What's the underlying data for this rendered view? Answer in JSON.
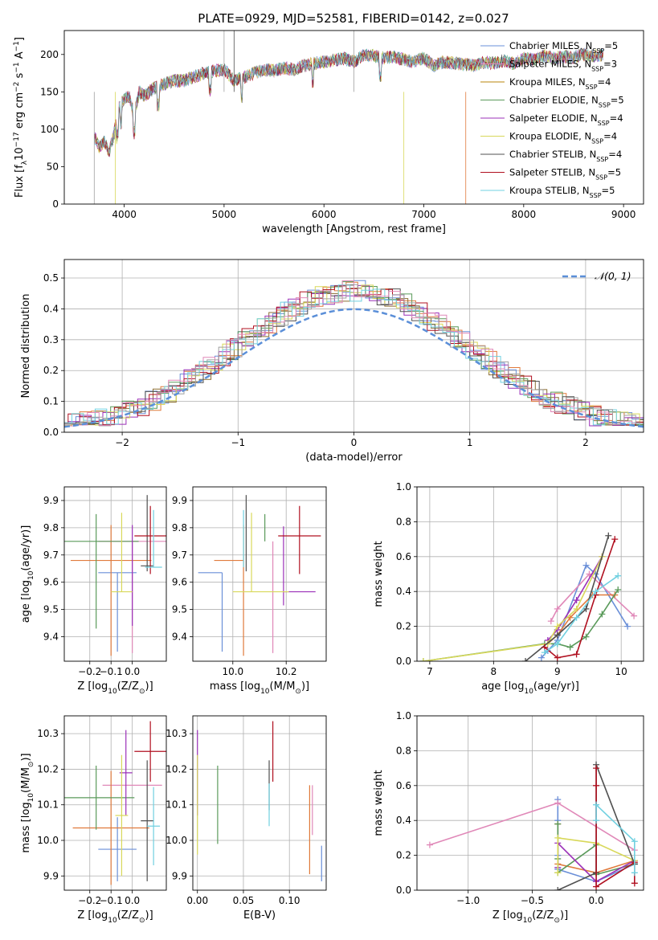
{
  "figure": {
    "title": "PLATE=0929, MJD=52581, FIBERID=0142, z=0.027"
  },
  "colors": [
    "#6a8fd8",
    "#e07a3c",
    "#8c6d31",
    "#5a9a5a",
    "#9b30b8",
    "#d8d85a",
    "#505050",
    "#b01020",
    "#70d0e0",
    "#e088b8",
    "#a0a0a0"
  ],
  "models": [
    {
      "label": "Chabrier MILES, N",
      "sub": "SSP",
      "suffix": "=5",
      "color": "#6a8fd8"
    },
    {
      "label": "Salpeter MILES, N",
      "sub": "SSP",
      "suffix": "=3",
      "color": "#e088b8"
    },
    {
      "label": "Kroupa MILES, N",
      "sub": "SSP",
      "suffix": "=4",
      "color": "#b8860b"
    },
    {
      "label": "Chabrier ELODIE, N",
      "sub": "SSP",
      "suffix": "=5",
      "color": "#5a9a5a"
    },
    {
      "label": "Salpeter ELODIE, N",
      "sub": "SSP",
      "suffix": "=4",
      "color": "#9b30b8"
    },
    {
      "label": "Kroupa ELODIE, N",
      "sub": "SSP",
      "suffix": "=4",
      "color": "#d8d85a"
    },
    {
      "label": "Chabrier STELIB, N",
      "sub": "SSP",
      "suffix": "=4",
      "color": "#505050"
    },
    {
      "label": "Salpeter STELIB, N",
      "sub": "SSP",
      "suffix": "=5",
      "color": "#b01020"
    },
    {
      "label": "Kroupa STELIB, N",
      "sub": "SSP",
      "suffix": "=5",
      "color": "#70d0e0"
    }
  ],
  "chart_data": [
    {
      "id": "spectrum",
      "type": "line",
      "xlabel": "wavelength [Angstrom, rest frame]",
      "ylabel_parts": [
        "Flux [f",
        "λ",
        "10",
        "−17",
        " erg cm",
        "−2",
        " s",
        "−1",
        " A",
        "−1",
        "]"
      ],
      "xlim": [
        3400,
        9200
      ],
      "ylim": [
        0,
        232
      ],
      "xticks": [
        4000,
        5000,
        6000,
        7000,
        8000,
        9000
      ],
      "yticks": [
        0,
        50,
        100,
        150,
        200
      ],
      "grid": false,
      "legend": "top-right",
      "series": [
        {
          "x": [
            3700,
            3750,
            3800,
            3850,
            3900,
            3950,
            4000,
            4050,
            4100,
            4150,
            4200,
            4300,
            4400,
            4500,
            4600,
            4700,
            4800,
            4900,
            5000,
            5100,
            5200,
            5300,
            5400,
            5500,
            5600,
            5700,
            5800,
            5900,
            6000,
            6100,
            6200,
            6300,
            6400,
            6500,
            6600,
            6700,
            6800,
            6900,
            7000,
            7100,
            7200,
            7300,
            7400,
            7500,
            7600,
            7700,
            7800,
            7900,
            8000,
            8100,
            8200,
            8300,
            8400,
            8500,
            8600,
            8700,
            8800
          ],
          "y": [
            90,
            75,
            85,
            70,
            95,
            130,
            140,
            145,
            120,
            150,
            145,
            155,
            160,
            165,
            165,
            170,
            175,
            178,
            180,
            165,
            170,
            175,
            180,
            178,
            182,
            180,
            185,
            188,
            190,
            192,
            195,
            190,
            200,
            198,
            195,
            197,
            193,
            190,
            195,
            185,
            190,
            188,
            187,
            185,
            190,
            188,
            192,
            188,
            195,
            193,
            198,
            195,
            197,
            196,
            200,
            198,
            200
          ]
        }
      ]
    },
    {
      "id": "residuals",
      "type": "line",
      "xlabel": "(data-model)/error",
      "ylabel": "Normed distribution",
      "xlim": [
        -2.5,
        2.5
      ],
      "ylim": [
        0,
        0.56
      ],
      "xticks": [
        -2,
        -1,
        0,
        1,
        2
      ],
      "yticks": [
        0.0,
        0.1,
        0.2,
        0.3,
        0.4,
        0.5
      ],
      "grid": true,
      "legend": "top-right",
      "reference": {
        "name": "𝒩(0, 1)",
        "mean": 0,
        "sigma": 1
      }
    },
    {
      "id": "age-vs-Z",
      "type": "scatter",
      "xlabel_parts": [
        "Z [log",
        "10",
        "(Z/Z",
        "⊙",
        ")]"
      ],
      "ylabel_parts": [
        "age  [log",
        "10",
        "(age/yr)]"
      ],
      "xlim": [
        -0.32,
        0.16
      ],
      "ylim": [
        9.31,
        9.95
      ],
      "xticks": [
        -0.2,
        -0.1,
        0.0
      ],
      "yticks": [
        9.4,
        9.5,
        9.6,
        9.7,
        9.8,
        9.9
      ],
      "grid": true,
      "points": [
        {
          "x": -0.07,
          "xerr": 0.09,
          "y": 9.635,
          "yerr_lo": 0.29,
          "yerr_hi": 0.0,
          "color": "#6a8fd8"
        },
        {
          "x": 0.0,
          "xerr": 0.16,
          "y": 9.75,
          "yerr_lo": 0.41,
          "yerr_hi": 0.0,
          "color": "#e088b8"
        },
        {
          "x": -0.1,
          "xerr": 0.19,
          "y": 9.68,
          "yerr_lo": 0.35,
          "yerr_hi": 0.13,
          "color": "#e07a3c"
        },
        {
          "x": -0.17,
          "xerr": 0.2,
          "y": 9.75,
          "yerr_lo": 0.32,
          "yerr_hi": 0.1,
          "color": "#5a9a5a"
        },
        {
          "x": 0.0,
          "xerr": 0.0,
          "y": 9.68,
          "yerr_lo": 0.24,
          "yerr_hi": 0.13,
          "color": "#9b30b8"
        },
        {
          "x": -0.05,
          "xerr": 0.05,
          "y": 9.565,
          "yerr_lo": 0.0,
          "yerr_hi": 0.29,
          "color": "#d8d85a"
        },
        {
          "x": 0.07,
          "xerr": 0.03,
          "y": 9.66,
          "yerr_lo": 0.02,
          "yerr_hi": 0.26,
          "color": "#505050"
        },
        {
          "x": 0.085,
          "xerr": 0.075,
          "y": 9.77,
          "yerr_lo": 0.14,
          "yerr_hi": 0.11,
          "color": "#b01020"
        },
        {
          "x": 0.1,
          "xerr": 0.04,
          "y": 9.655,
          "yerr_lo": 0.0,
          "yerr_hi": 0.21,
          "color": "#70d0e0"
        }
      ]
    },
    {
      "id": "age-vs-mass",
      "type": "scatter",
      "xlabel_parts": [
        "mass [log",
        "10",
        "(M/M",
        "⊙",
        ")]"
      ],
      "xlim": [
        9.85,
        10.35
      ],
      "ylim": [
        9.31,
        9.95
      ],
      "xticks": [
        10.0,
        10.2
      ],
      "yticks": [
        9.4,
        9.5,
        9.6,
        9.7,
        9.8,
        9.9
      ],
      "grid": true,
      "points": [
        {
          "x": 9.96,
          "xerr_lo": 0.09,
          "xerr_hi": 0.0,
          "y": 9.635,
          "yerr_lo": 0.29,
          "yerr_hi": 0.0,
          "color": "#6a8fd8"
        },
        {
          "x": 10.15,
          "xerr_lo": 0.0,
          "xerr_hi": 0.0,
          "y": 9.75,
          "yerr_lo": 0.41,
          "yerr_hi": 0.0,
          "color": "#e088b8"
        },
        {
          "x": 10.04,
          "xerr_lo": 0.11,
          "xerr_hi": 0.0,
          "y": 9.68,
          "yerr_lo": 0.35,
          "yerr_hi": 0.13,
          "color": "#e07a3c"
        },
        {
          "x": 10.12,
          "xerr_lo": 0.0,
          "xerr_hi": 0.0,
          "y": 9.75,
          "yerr_lo": 0.0,
          "yerr_hi": 0.1,
          "color": "#5a9a5a"
        },
        {
          "x": 10.19,
          "xerr_lo": 0.0,
          "xerr_hi": 0.12,
          "y": 9.565,
          "yerr_lo": 0.05,
          "yerr_hi": 0.24,
          "color": "#9b30b8"
        },
        {
          "x": 10.07,
          "xerr_lo": 0.07,
          "xerr_hi": 0.14,
          "y": 9.565,
          "yerr_lo": 0.0,
          "yerr_hi": 0.29,
          "color": "#d8d85a"
        },
        {
          "x": 10.05,
          "xerr_lo": 0.0,
          "xerr_hi": 0.0,
          "y": 9.66,
          "yerr_lo": 0.02,
          "yerr_hi": 0.26,
          "color": "#505050"
        },
        {
          "x": 10.25,
          "xerr_lo": 0.08,
          "xerr_hi": 0.08,
          "y": 9.77,
          "yerr_lo": 0.14,
          "yerr_hi": 0.11,
          "color": "#b01020"
        },
        {
          "x": 10.04,
          "xerr_lo": 0.0,
          "xerr_hi": 0.0,
          "y": 9.655,
          "yerr_lo": 0.0,
          "yerr_hi": 0.21,
          "color": "#70d0e0"
        }
      ]
    },
    {
      "id": "mass-weight-vs-age",
      "type": "line",
      "xlabel_parts": [
        "age  [log",
        "10",
        "(age/yr)]"
      ],
      "ylabel": "mass weight",
      "xlim": [
        6.8,
        10.35
      ],
      "ylim": [
        0,
        1.0
      ],
      "xticks": [
        7,
        8,
        9,
        10
      ],
      "yticks": [
        0.0,
        0.2,
        0.4,
        0.6,
        0.8,
        1.0
      ],
      "grid": true,
      "series": [
        {
          "color": "#6a8fd8",
          "x": [
            8.75,
            8.85,
            9.0,
            9.45,
            9.6,
            10.1
          ],
          "y": [
            0.02,
            0.06,
            0.12,
            0.55,
            0.5,
            0.2
          ]
        },
        {
          "color": "#e088b8",
          "x": [
            8.9,
            9.0,
            9.5,
            10.2
          ],
          "y": [
            0.23,
            0.3,
            0.5,
            0.26
          ]
        },
        {
          "color": "#e07a3c",
          "x": [
            8.85,
            9.0,
            9.2,
            9.55,
            9.9
          ],
          "y": [
            0.1,
            0.15,
            0.25,
            0.38,
            0.38
          ]
        },
        {
          "color": "#5a9a5a",
          "x": [
            6.9,
            8.8,
            9.0,
            9.2,
            9.45,
            9.7,
            9.95
          ],
          "y": [
            0.0,
            0.1,
            0.1,
            0.08,
            0.14,
            0.27,
            0.41
          ]
        },
        {
          "color": "#9b30b8",
          "x": [
            8.85,
            9.0,
            9.3,
            9.7
          ],
          "y": [
            0.12,
            0.18,
            0.35,
            0.6
          ]
        },
        {
          "color": "#d8d85a",
          "x": [
            6.9,
            8.85,
            9.0,
            9.3,
            9.7
          ],
          "y": [
            0.0,
            0.1,
            0.2,
            0.3,
            0.6
          ]
        },
        {
          "color": "#505050",
          "x": [
            8.5,
            9.0,
            9.45,
            9.8
          ],
          "y": [
            0.0,
            0.15,
            0.3,
            0.72
          ]
        },
        {
          "color": "#b01020",
          "x": [
            8.8,
            9.0,
            9.3,
            9.6,
            9.9
          ],
          "y": [
            0.08,
            0.02,
            0.04,
            0.38,
            0.7
          ]
        },
        {
          "color": "#70d0e0",
          "x": [
            8.8,
            9.0,
            9.3,
            9.6,
            9.95
          ],
          "y": [
            0.05,
            0.1,
            0.25,
            0.4,
            0.49
          ]
        }
      ]
    },
    {
      "id": "mass-vs-Z",
      "type": "scatter",
      "xlabel_parts": [
        "Z [log",
        "10",
        "(Z/Z",
        "⊙",
        ")]"
      ],
      "ylabel_parts": [
        "mass [log",
        "10",
        "(M/M",
        "⊙",
        ")]"
      ],
      "xlim": [
        -0.32,
        0.16
      ],
      "ylim": [
        9.86,
        10.35
      ],
      "xticks": [
        -0.2,
        -0.1,
        0.0
      ],
      "yticks": [
        9.9,
        10.0,
        10.1,
        10.2,
        10.3
      ],
      "grid": true,
      "points": [
        {
          "x": -0.07,
          "xerr": 0.09,
          "y": 9.975,
          "yerr": 0.09,
          "color": "#6a8fd8"
        },
        {
          "x": 0.0,
          "xerr": 0.14,
          "y": 10.155,
          "yerr": 0.0,
          "color": "#e088b8"
        },
        {
          "x": -0.1,
          "xerr": 0.18,
          "y": 10.035,
          "yerr": 0.16,
          "color": "#e07a3c"
        },
        {
          "x": -0.17,
          "xerr": 0.18,
          "y": 10.12,
          "yerr": 0.09,
          "color": "#5a9a5a"
        },
        {
          "x": -0.03,
          "xerr": 0.03,
          "y": 10.19,
          "yerr": 0.12,
          "color": "#9b30b8"
        },
        {
          "x": -0.05,
          "xerr": 0.03,
          "y": 10.07,
          "yerr": 0.17,
          "color": "#d8d85a"
        },
        {
          "x": 0.07,
          "xerr": 0.03,
          "y": 10.055,
          "yerr": 0.17,
          "color": "#505050"
        },
        {
          "x": 0.085,
          "xerr": 0.075,
          "y": 10.25,
          "yerr": 0.085,
          "color": "#b01020"
        },
        {
          "x": 0.1,
          "xerr": 0.03,
          "y": 10.04,
          "yerr": 0.11,
          "color": "#70d0e0"
        }
      ]
    },
    {
      "id": "mass-vs-EBV",
      "type": "scatter",
      "xlabel": "E(B-V)",
      "xlim": [
        -0.005,
        0.14
      ],
      "ylim": [
        9.86,
        10.35
      ],
      "xticks": [
        0.0,
        0.05,
        0.1
      ],
      "yticks": [
        9.9,
        10.0,
        10.1,
        10.2,
        10.3
      ],
      "grid": true,
      "points": [
        {
          "x": 0.135,
          "y": 9.935,
          "yerr": 0.05,
          "color": "#6a8fd8"
        },
        {
          "x": 0.125,
          "y": 10.085,
          "yerr": 0.07,
          "color": "#e088b8"
        },
        {
          "x": 0.122,
          "y": 10.03,
          "yerr": 0.125,
          "color": "#e07a3c"
        },
        {
          "x": 0.022,
          "y": 10.1,
          "yerr": 0.11,
          "color": "#5a9a5a"
        },
        {
          "x": 0.0,
          "y": 10.19,
          "yerr": 0.12,
          "color": "#9b30b8"
        },
        {
          "x": 0.0,
          "y": 10.1,
          "yerr": 0.14,
          "color": "#d8d85a"
        },
        {
          "x": 0.078,
          "y": 10.155,
          "yerr": 0.07,
          "color": "#505050"
        },
        {
          "x": 0.082,
          "y": 10.25,
          "yerr": 0.085,
          "color": "#b01020"
        },
        {
          "x": 0.078,
          "y": 10.1,
          "yerr": 0.06,
          "color": "#70d0e0"
        }
      ]
    },
    {
      "id": "mass-weight-vs-Z",
      "type": "line",
      "xlabel_parts": [
        "Z [log",
        "10",
        "(Z/Z",
        "⊙",
        ")]"
      ],
      "ylabel": "mass weight",
      "xlim": [
        -1.4,
        0.37
      ],
      "ylim": [
        0,
        1.0
      ],
      "xticks": [
        -1.0,
        -0.5,
        0.0
      ],
      "yticks": [
        0.0,
        0.2,
        0.4,
        0.6,
        0.8,
        1.0
      ],
      "grid": true,
      "series": [
        {
          "color": "#6a8fd8",
          "x": [
            -0.3,
            -0.3,
            -0.3,
            -0.3,
            0.0,
            0.3
          ],
          "y": [
            0.52,
            0.4,
            0.2,
            0.12,
            0.05,
            0.15
          ]
        },
        {
          "color": "#e088b8",
          "x": [
            -1.3,
            -0.3,
            0.3
          ],
          "y": [
            0.26,
            0.5,
            0.23
          ]
        },
        {
          "color": "#e07a3c",
          "x": [
            -0.3,
            -0.3,
            0.0,
            0.3
          ],
          "y": [
            0.38,
            0.15,
            0.1,
            0.17
          ]
        },
        {
          "color": "#5a9a5a",
          "x": [
            -0.3,
            -0.3,
            -0.3,
            0.0,
            0.0,
            0.3
          ],
          "y": [
            0.38,
            0.18,
            0.1,
            0.26,
            0.09,
            0.15
          ]
        },
        {
          "color": "#9b30b8",
          "x": [
            -0.3,
            -0.3,
            0.0,
            0.3
          ],
          "y": [
            0.13,
            0.27,
            0.05,
            0.17
          ]
        },
        {
          "color": "#d8d85a",
          "x": [
            -0.3,
            -0.3,
            0.0,
            0.3
          ],
          "y": [
            0.1,
            0.3,
            0.27,
            0.17
          ]
        },
        {
          "color": "#505050",
          "x": [
            -0.3,
            0.0,
            0.0,
            0.3
          ],
          "y": [
            0.0,
            0.1,
            0.72,
            0.15
          ]
        },
        {
          "color": "#b01020",
          "x": [
            0.0,
            0.0,
            0.0,
            0.3,
            0.3
          ],
          "y": [
            0.7,
            0.6,
            0.02,
            0.16,
            0.04
          ]
        },
        {
          "color": "#70d0e0",
          "x": [
            0.0,
            0.0,
            0.3,
            0.3
          ],
          "y": [
            0.4,
            0.49,
            0.28,
            0.1
          ]
        }
      ]
    }
  ]
}
